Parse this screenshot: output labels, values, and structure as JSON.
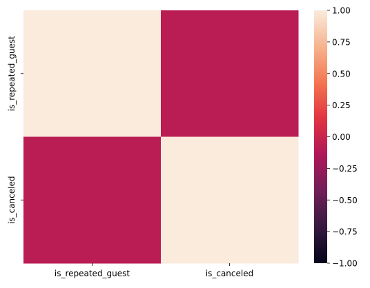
{
  "chart_data": {
    "type": "heatmap",
    "title": "",
    "xlabel": "",
    "ylabel": "",
    "x_categories": [
      "is_repeated_guest",
      "is_canceled"
    ],
    "y_categories": [
      "is_repeated_guest",
      "is_canceled"
    ],
    "values": [
      [
        1.0,
        -0.08
      ],
      [
        -0.08,
        1.0
      ]
    ],
    "colorbar": {
      "vmin": -1.0,
      "vmax": 1.0,
      "ticks": [
        1.0,
        0.75,
        0.5,
        0.25,
        0.0,
        -0.25,
        -0.5,
        -0.75,
        -1.0
      ],
      "tick_labels": [
        "1.00",
        "0.75",
        "0.50",
        "0.25",
        "0.00",
        "−0.25",
        "−0.50",
        "−0.75",
        "−1.00"
      ],
      "colormap": "rocket",
      "colors": [
        "#03051a",
        "#36193e",
        "#701f57",
        "#ae1759",
        "#e13342",
        "#f37651",
        "#f6b48f",
        "#faebdd"
      ]
    },
    "grid": false,
    "legend": "colorbar-right"
  }
}
